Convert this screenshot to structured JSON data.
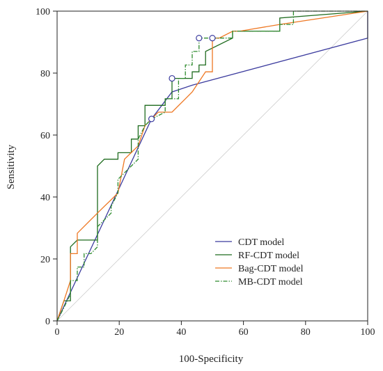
{
  "chart_data": {
    "type": "line",
    "xlabel": "100-Specificity",
    "ylabel": "Sensitivity",
    "xlim": [
      0,
      100
    ],
    "ylim": [
      0,
      100
    ],
    "xticks": [
      0,
      20,
      40,
      60,
      80,
      100
    ],
    "yticks": [
      0,
      20,
      40,
      60,
      80,
      100
    ],
    "grid": false,
    "legend_position": "bottom-right",
    "reference_line": {
      "x": [
        0,
        100
      ],
      "y": [
        0,
        100
      ],
      "color": "#cccccc"
    },
    "series": [
      {
        "name": "CDT model",
        "color": "#3b3b9e",
        "dash": "solid",
        "x": [
          0,
          30.4,
          37.0,
          43.5,
          100,
          100
        ],
        "y": [
          0,
          65.2,
          73.9,
          76.1,
          91.3,
          100
        ]
      },
      {
        "name": "RF-CDT model",
        "color": "#1e6b1e",
        "dash": "solid",
        "x": [
          0,
          2.2,
          4.3,
          4.3,
          6.5,
          13.0,
          13.0,
          15.2,
          19.6,
          19.6,
          23.9,
          23.9,
          26.1,
          26.1,
          28.3,
          28.3,
          34.8,
          34.8,
          37.0,
          37.0,
          43.5,
          43.5,
          45.7,
          45.7,
          47.8,
          47.8,
          56.5,
          56.5,
          71.7,
          71.7,
          100
        ],
        "y": [
          0,
          6.5,
          6.5,
          23.9,
          26.1,
          26.1,
          50.0,
          52.2,
          52.2,
          54.3,
          54.3,
          58.7,
          58.7,
          63.0,
          63.0,
          69.6,
          69.6,
          71.7,
          71.7,
          78.3,
          78.3,
          80.4,
          80.4,
          82.6,
          82.6,
          87.0,
          91.3,
          93.5,
          93.5,
          97.8,
          100
        ]
      },
      {
        "name": "Bag-CDT model",
        "color": "#ee7722",
        "dash": "solid",
        "x": [
          0,
          2.2,
          4.3,
          4.3,
          6.5,
          6.5,
          13.0,
          15.2,
          17.4,
          19.6,
          21.7,
          26.1,
          28.3,
          30.4,
          32.6,
          37.0,
          41.3,
          43.5,
          47.8,
          50.0,
          50.0,
          52.2,
          56.5,
          58.7,
          71.7,
          100
        ],
        "y": [
          0,
          6.5,
          13.0,
          21.7,
          21.7,
          28.3,
          34.8,
          37.0,
          39.1,
          41.3,
          52.2,
          56.5,
          63.0,
          65.2,
          67.4,
          67.4,
          71.7,
          73.9,
          80.4,
          80.4,
          91.3,
          91.3,
          93.5,
          93.5,
          95.7,
          100
        ]
      },
      {
        "name": "MB-CDT model",
        "color": "#2e8b2e",
        "dash": "dashdot",
        "x": [
          0,
          2.2,
          4.3,
          4.3,
          6.5,
          6.5,
          8.7,
          8.7,
          10.9,
          13.0,
          13.0,
          17.4,
          17.4,
          19.6,
          19.6,
          23.9,
          26.1,
          26.1,
          28.3,
          30.4,
          34.8,
          34.8,
          39.1,
          39.1,
          41.3,
          41.3,
          43.5,
          43.5,
          45.7,
          45.7,
          56.5,
          56.5,
          71.7,
          71.7,
          76.1,
          76.1,
          100
        ],
        "y": [
          0,
          4.3,
          8.7,
          13.0,
          13.0,
          17.4,
          17.4,
          21.7,
          21.7,
          23.9,
          30.4,
          34.8,
          37.0,
          41.3,
          45.7,
          50.0,
          52.2,
          58.7,
          63.0,
          65.2,
          67.4,
          71.7,
          71.7,
          78.3,
          78.3,
          82.6,
          82.6,
          87.0,
          87.0,
          91.3,
          91.3,
          93.5,
          93.5,
          95.7,
          95.7,
          100,
          100
        ]
      }
    ],
    "optimal_points": [
      {
        "series": "CDT model",
        "x": 30.4,
        "y": 65.2
      },
      {
        "series": "RF-CDT model",
        "x": 37.0,
        "y": 78.3
      },
      {
        "series": "Bag-CDT model",
        "x": 50.0,
        "y": 91.3
      },
      {
        "series": "MB-CDT model",
        "x": 45.7,
        "y": 91.3
      }
    ]
  }
}
